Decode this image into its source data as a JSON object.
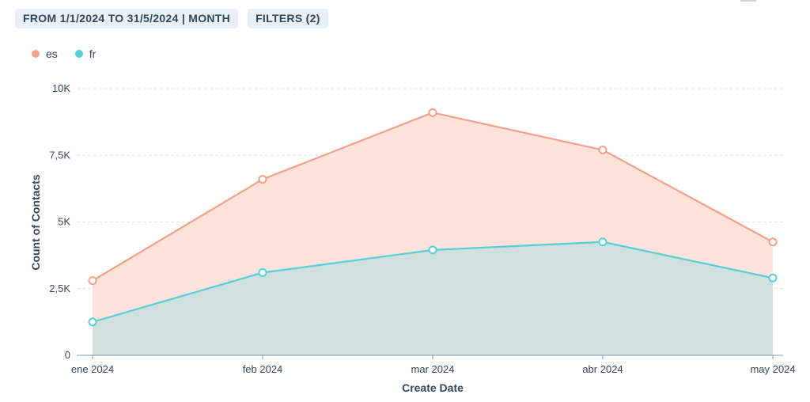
{
  "toolbar": {
    "date_range_label": "FROM 1/1/2024 TO 31/5/2024 | MONTH",
    "filters_label": "FILTERS (2)"
  },
  "colors": {
    "es_line": "#f5a08a",
    "es_fill": "#fde3dc",
    "fr_line": "#57cfd9",
    "fr_fill": "#cfe0dd",
    "grid": "#dfe3eb",
    "axis": "#7c98b6"
  },
  "chart_data": {
    "type": "area",
    "xlabel": "Create Date",
    "ylabel": "Count of Contacts",
    "categories": [
      "ene 2024",
      "feb 2024",
      "mar 2024",
      "abr 2024",
      "may 2024"
    ],
    "yticks": [
      "0",
      "2,5K",
      "5K",
      "7,5K",
      "10K"
    ],
    "ytick_values": [
      0,
      2500,
      5000,
      7500,
      10000
    ],
    "ylim": [
      0,
      10000
    ],
    "grid": true,
    "legend_position": "top-left",
    "series": [
      {
        "name": "es",
        "values": [
          2800,
          6600,
          9100,
          7700,
          4250
        ]
      },
      {
        "name": "fr",
        "values": [
          1250,
          3100,
          3950,
          4250,
          2900
        ]
      }
    ]
  }
}
